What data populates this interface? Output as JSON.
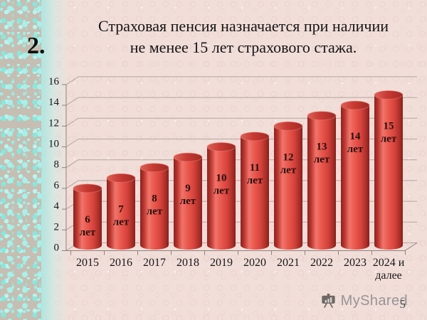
{
  "slide": {
    "item_number": "2.",
    "title_lines": [
      "Страховая пенсия назначается при наличии",
      "не менее 15 лет страхового стажа."
    ],
    "page_number": "5"
  },
  "watermark": {
    "label": "MyShared",
    "icon": "presentation-easel-icon"
  },
  "colors": {
    "grid": "#b3a49f",
    "axis": "#8f817d",
    "bar_red": "#e0463f",
    "bar_top": "#c73a33",
    "bar_label": "#26100d",
    "mosaic_teal": "#84e9e0",
    "slide_bg": "#f1ded9"
  },
  "chart_data": {
    "type": "bar",
    "style": "3d-cylinder",
    "title": "",
    "xlabel": "",
    "ylabel": "",
    "categories": [
      "2015",
      "2016",
      "2017",
      "2018",
      "2019",
      "2020",
      "2021",
      "2022",
      "2023",
      "2024 и далее"
    ],
    "values": [
      6,
      7,
      8,
      9,
      10,
      11,
      12,
      13,
      14,
      15
    ],
    "bar_labels": [
      "6 лет",
      "7 лет",
      "8 лет",
      "9 лет",
      "10 лет",
      "11 лет",
      "12 лет",
      "13 лет",
      "14 лет",
      "15 лет"
    ],
    "x_tick_lines": [
      [
        "2015"
      ],
      [
        "2016"
      ],
      [
        "2017"
      ],
      [
        "2018"
      ],
      [
        "2019"
      ],
      [
        "2020"
      ],
      [
        "2021"
      ],
      [
        "2022"
      ],
      [
        "2023"
      ],
      [
        "2024 и",
        "далее"
      ]
    ],
    "yticks": [
      0,
      2,
      4,
      6,
      8,
      10,
      12,
      14,
      16
    ],
    "ylim": [
      0,
      16
    ],
    "grid": true,
    "legend": false
  }
}
